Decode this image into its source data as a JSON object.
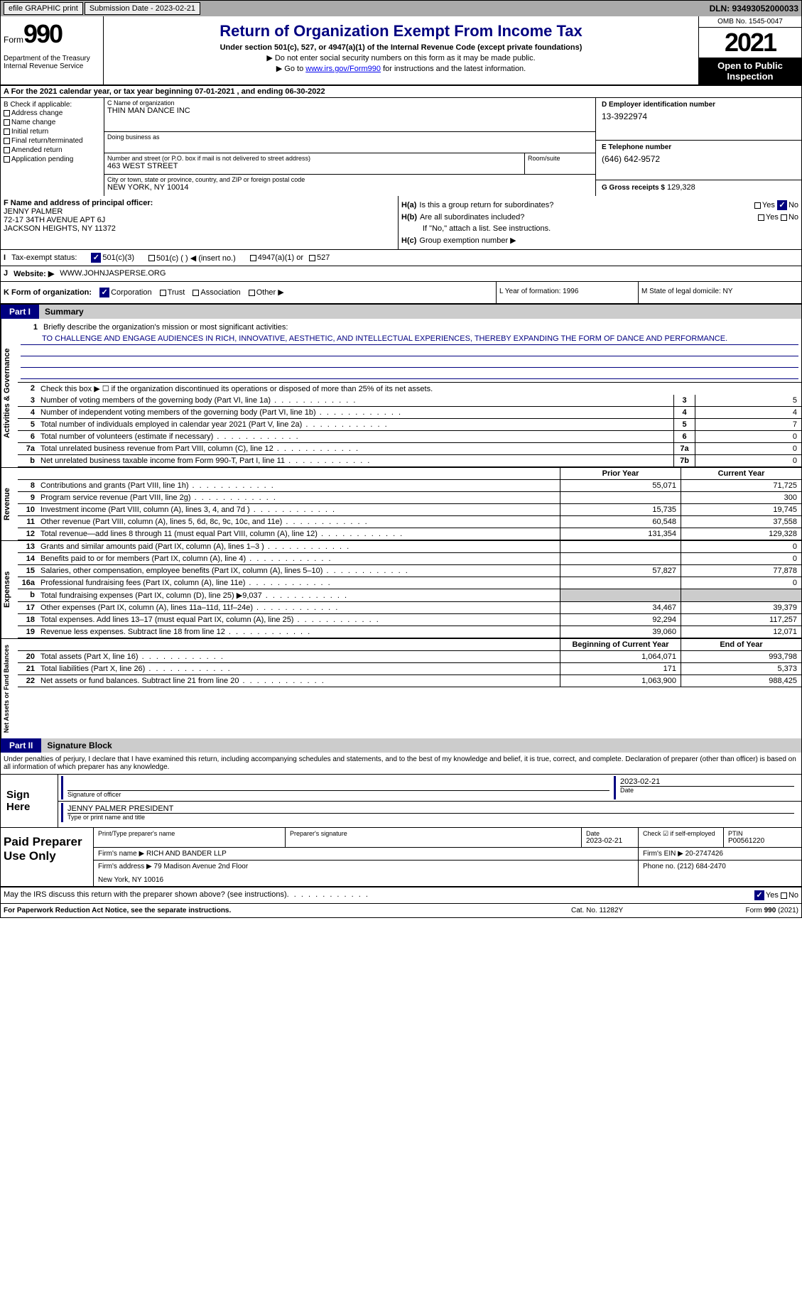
{
  "topbar": {
    "efile": "efile GRAPHIC print",
    "submission": "Submission Date - 2023-02-21",
    "dln": "DLN: 93493052000033"
  },
  "header": {
    "form_label": "Form",
    "form_number": "990",
    "title": "Return of Organization Exempt From Income Tax",
    "subtitle": "Under section 501(c), 527, or 4947(a)(1) of the Internal Revenue Code (except private foundations)",
    "warn1": "▶ Do not enter social security numbers on this form as it may be made public.",
    "warn2_pre": "▶ Go to ",
    "warn2_link": "www.irs.gov/Form990",
    "warn2_post": " for instructions and the latest information.",
    "dept": "Department of the Treasury Internal Revenue Service",
    "omb": "OMB No. 1545-0047",
    "year": "2021",
    "inspection": "Open to Public Inspection"
  },
  "calyear": "A For the 2021 calendar year, or tax year beginning 07-01-2021    , and ending 06-30-2022",
  "checkB": {
    "label": "B Check if applicable:",
    "items": [
      "Address change",
      "Name change",
      "Initial return",
      "Final return/terminated",
      "Amended return",
      "Application pending"
    ]
  },
  "sectionC": {
    "name_label": "C Name of organization",
    "name": "THIN MAN DANCE INC",
    "dba_label": "Doing business as",
    "dba": "",
    "street_label": "Number and street (or P.O. box if mail is not delivered to street address)",
    "street": "463 WEST STREET",
    "room_label": "Room/suite",
    "room": "",
    "city_label": "City or town, state or province, country, and ZIP or foreign postal code",
    "city": "NEW YORK, NY  10014"
  },
  "sectionD": {
    "ein_label": "D Employer identification number",
    "ein": "13-3922974",
    "phone_label": "E Telephone number",
    "phone": "(646) 642-9572",
    "gross_label": "G Gross receipts $",
    "gross": "129,328"
  },
  "sectionF": {
    "label": "F Name and address of principal officer:",
    "name": "JENNY PALMER",
    "addr1": "72-17 34TH AVENUE APT 6J",
    "addr2": "JACKSON HEIGHTS, NY  11372"
  },
  "sectionH": {
    "a_label": "H(a)",
    "a_text": "Is this a group return for subordinates?",
    "b_label": "H(b)",
    "b_text": "Are all subordinates included?",
    "b_note": "If \"No,\" attach a list. See instructions.",
    "c_label": "H(c)",
    "c_text": "Group exemption number ▶"
  },
  "taxStatus": {
    "label": "I",
    "text": "Tax-exempt status:",
    "opt1": "501(c)(3)",
    "opt2": "501(c) (  ) ◀ (insert no.)",
    "opt3": "4947(a)(1) or",
    "opt4": "527"
  },
  "website": {
    "label": "J",
    "text": "Website: ▶",
    "value": "WWW.JOHNJASPERSE.ORG"
  },
  "formOrg": {
    "label": "K Form of organization:",
    "corp": "Corporation",
    "trust": "Trust",
    "assoc": "Association",
    "other": "Other ▶",
    "l_label": "L Year of formation: 1996",
    "m_label": "M State of legal domicile: NY"
  },
  "part1": {
    "label": "Part I",
    "title": "Summary"
  },
  "summary": {
    "line1_label": "Briefly describe the organization's mission or most significant activities:",
    "line1_text": "TO CHALLENGE AND ENGAGE AUDIENCES IN RICH, INNOVATIVE, AESTHETIC, AND INTELLECTUAL EXPERIENCES, THEREBY EXPANDING THE FORM OF DANCE AND PERFORMANCE.",
    "line2": "Check this box ▶ ☐ if the organization discontinued its operations or disposed of more than 25% of its net assets.",
    "lines": [
      {
        "n": "3",
        "t": "Number of voting members of the governing body (Part VI, line 1a)",
        "b": "3",
        "v": "5"
      },
      {
        "n": "4",
        "t": "Number of independent voting members of the governing body (Part VI, line 1b)",
        "b": "4",
        "v": "4"
      },
      {
        "n": "5",
        "t": "Total number of individuals employed in calendar year 2021 (Part V, line 2a)",
        "b": "5",
        "v": "7"
      },
      {
        "n": "6",
        "t": "Total number of volunteers (estimate if necessary)",
        "b": "6",
        "v": "0"
      },
      {
        "n": "7a",
        "t": "Total unrelated business revenue from Part VIII, column (C), line 12",
        "b": "7a",
        "v": "0"
      },
      {
        "n": "b",
        "t": "Net unrelated business taxable income from Form 990-T, Part I, line 11",
        "b": "7b",
        "v": "0"
      }
    ],
    "header_prior": "Prior Year",
    "header_current": "Current Year",
    "revenue": [
      {
        "n": "8",
        "t": "Contributions and grants (Part VIII, line 1h)",
        "p": "55,071",
        "c": "71,725"
      },
      {
        "n": "9",
        "t": "Program service revenue (Part VIII, line 2g)",
        "p": "",
        "c": "300"
      },
      {
        "n": "10",
        "t": "Investment income (Part VIII, column (A), lines 3, 4, and 7d )",
        "p": "15,735",
        "c": "19,745"
      },
      {
        "n": "11",
        "t": "Other revenue (Part VIII, column (A), lines 5, 6d, 8c, 9c, 10c, and 11e)",
        "p": "60,548",
        "c": "37,558"
      },
      {
        "n": "12",
        "t": "Total revenue—add lines 8 through 11 (must equal Part VIII, column (A), line 12)",
        "p": "131,354",
        "c": "129,328"
      }
    ],
    "expenses": [
      {
        "n": "13",
        "t": "Grants and similar amounts paid (Part IX, column (A), lines 1–3 )",
        "p": "",
        "c": "0"
      },
      {
        "n": "14",
        "t": "Benefits paid to or for members (Part IX, column (A), line 4)",
        "p": "",
        "c": "0"
      },
      {
        "n": "15",
        "t": "Salaries, other compensation, employee benefits (Part IX, column (A), lines 5–10)",
        "p": "57,827",
        "c": "77,878"
      },
      {
        "n": "16a",
        "t": "Professional fundraising fees (Part IX, column (A), line 11e)",
        "p": "",
        "c": "0"
      },
      {
        "n": "b",
        "t": "Total fundraising expenses (Part IX, column (D), line 25) ▶9,037",
        "p": "gray",
        "c": "gray"
      },
      {
        "n": "17",
        "t": "Other expenses (Part IX, column (A), lines 11a–11d, 11f–24e)",
        "p": "34,467",
        "c": "39,379"
      },
      {
        "n": "18",
        "t": "Total expenses. Add lines 13–17 (must equal Part IX, column (A), line 25)",
        "p": "92,294",
        "c": "117,257"
      },
      {
        "n": "19",
        "t": "Revenue less expenses. Subtract line 18 from line 12",
        "p": "39,060",
        "c": "12,071"
      }
    ],
    "header_begin": "Beginning of Current Year",
    "header_end": "End of Year",
    "netassets": [
      {
        "n": "20",
        "t": "Total assets (Part X, line 16)",
        "p": "1,064,071",
        "c": "993,798"
      },
      {
        "n": "21",
        "t": "Total liabilities (Part X, line 26)",
        "p": "171",
        "c": "5,373"
      },
      {
        "n": "22",
        "t": "Net assets or fund balances. Subtract line 21 from line 20",
        "p": "1,063,900",
        "c": "988,425"
      }
    ],
    "vert_activities": "Activities & Governance",
    "vert_revenue": "Revenue",
    "vert_expenses": "Expenses",
    "vert_netassets": "Net Assets or Fund Balances"
  },
  "part2": {
    "label": "Part II",
    "title": "Signature Block",
    "declaration": "Under penalties of perjury, I declare that I have examined this return, including accompanying schedules and statements, and to the best of my knowledge and belief, it is true, correct, and complete. Declaration of preparer (other than officer) is based on all information of which preparer has any knowledge."
  },
  "sign": {
    "label": "Sign Here",
    "sig_label": "Signature of officer",
    "date": "2023-02-21",
    "date_label": "Date",
    "name": "JENNY PALMER  PRESIDENT",
    "name_label": "Type or print name and title"
  },
  "paid": {
    "label": "Paid Preparer Use Only",
    "print_label": "Print/Type preparer's name",
    "print_val": "",
    "sig_label": "Preparer's signature",
    "date_label": "Date",
    "date_val": "2023-02-21",
    "check_label": "Check ☑ if self-employed",
    "ptin_label": "PTIN",
    "ptin_val": "P00561220",
    "firm_name_label": "Firm's name    ▶",
    "firm_name": "RICH AND BANDER LLP",
    "firm_ein_label": "Firm's EIN ▶",
    "firm_ein": "20-2747426",
    "firm_addr_label": "Firm's address ▶",
    "firm_addr1": "79 Madison Avenue 2nd Floor",
    "firm_addr2": "New York, NY  10016",
    "phone_label": "Phone no.",
    "phone": "(212) 684-2470"
  },
  "discuss": "May the IRS discuss this return with the preparer shown above? (see instructions)",
  "footer": {
    "left": "For Paperwork Reduction Act Notice, see the separate instructions.",
    "mid": "Cat. No. 11282Y",
    "right_pre": "Form ",
    "right_form": "990",
    "right_post": " (2021)"
  },
  "yes": "Yes",
  "no": "No"
}
